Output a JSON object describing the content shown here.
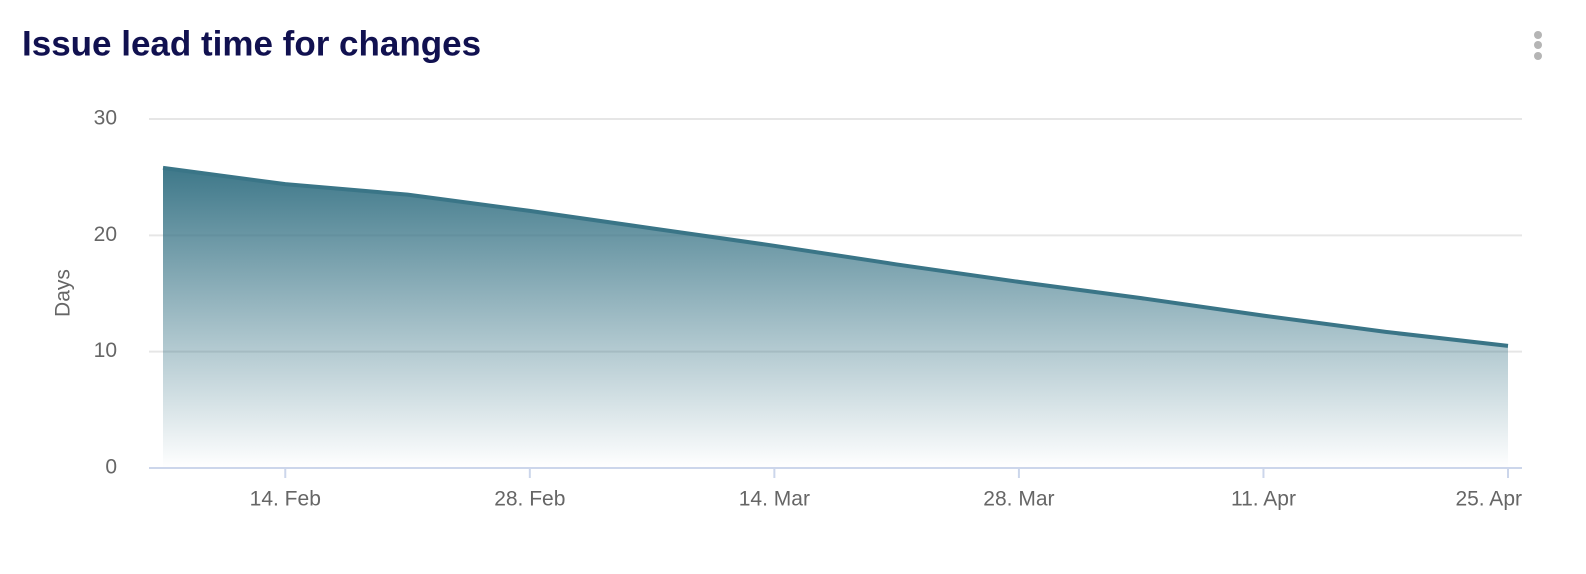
{
  "chart_data": {
    "type": "area",
    "title": "Issue lead time for changes",
    "y_label": "Days",
    "x": [
      null,
      "14. Feb",
      null,
      "28. Feb",
      null,
      "14. Mar",
      null,
      "28. Mar",
      null,
      "11. Apr",
      null,
      "25. Apr"
    ],
    "values": [
      25.8,
      24.4,
      23.5,
      22.1,
      20.6,
      19.1,
      17.5,
      16.0,
      14.6,
      13.1,
      11.7,
      10.5
    ],
    "color": "#3a7587",
    "ylim": [
      0,
      30
    ],
    "yticks": [
      0,
      10,
      20,
      30
    ],
    "grid": true
  }
}
